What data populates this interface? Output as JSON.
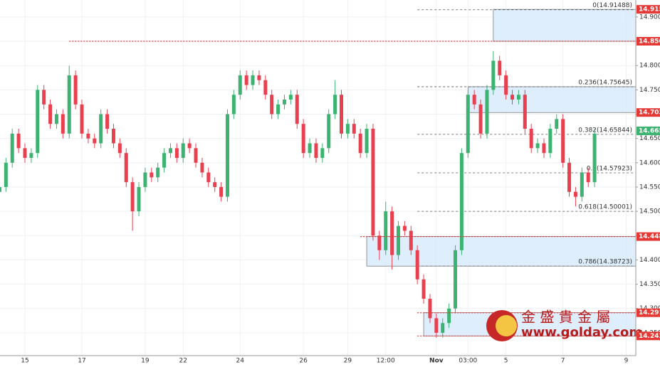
{
  "chart_data": {
    "type": "candlestick",
    "categories": [
      null,
      null,
      null,
      null,
      "15",
      null,
      null,
      null,
      null,
      null,
      null,
      null,
      null,
      "17",
      null,
      null,
      null,
      null,
      null,
      null,
      null,
      null,
      null,
      "19",
      null,
      null,
      null,
      null,
      null,
      "22",
      null,
      null,
      null,
      null,
      null,
      null,
      null,
      null,
      "24",
      null,
      null,
      null,
      null,
      null,
      null,
      null,
      null,
      null,
      "26",
      null,
      null,
      null,
      null,
      null,
      null,
      "29",
      null,
      null,
      null,
      null,
      null,
      "12:00",
      null,
      null,
      null,
      null,
      null,
      null,
      null,
      "Nov",
      null,
      null,
      null,
      null,
      "03:00",
      null,
      null,
      null,
      null,
      null,
      "5",
      null,
      null,
      null,
      null,
      null,
      null,
      null,
      null,
      "7",
      null,
      null,
      null,
      null,
      null,
      null,
      null,
      null,
      null,
      "9"
    ],
    "open": [
      14.54,
      14.55,
      14.6,
      14.66,
      14.63,
      14.61,
      14.62,
      14.75,
      14.72,
      14.68,
      14.7,
      14.66,
      14.78,
      14.72,
      14.66,
      14.65,
      14.64,
      14.7,
      14.67,
      14.64,
      14.62,
      14.56,
      14.5,
      14.55,
      14.58,
      14.57,
      14.59,
      14.62,
      14.63,
      14.61,
      14.64,
      14.63,
      14.6,
      14.58,
      14.56,
      14.55,
      14.53,
      14.7,
      14.74,
      14.78,
      14.76,
      14.78,
      14.77,
      14.74,
      14.7,
      14.72,
      14.73,
      14.74,
      14.68,
      14.62,
      14.64,
      14.61,
      14.63,
      14.7,
      14.74,
      14.66,
      14.68,
      14.66,
      14.62,
      14.67,
      14.45,
      14.42,
      14.5,
      14.41,
      14.47,
      14.46,
      14.42,
      14.36,
      14.32,
      14.28,
      14.25,
      14.27,
      14.3,
      14.42,
      14.62,
      14.74,
      14.72,
      14.66,
      14.75,
      14.81,
      14.78,
      14.74,
      14.73,
      14.74,
      14.67,
      14.63,
      14.64,
      14.62,
      14.67,
      14.69,
      14.6,
      14.54,
      14.53,
      14.58,
      14.56,
      null,
      null,
      null,
      null,
      null
    ],
    "high": [
      14.57,
      14.61,
      14.67,
      14.67,
      14.64,
      14.63,
      14.76,
      14.76,
      14.73,
      14.71,
      14.71,
      14.8,
      14.79,
      14.73,
      14.67,
      14.66,
      14.71,
      14.71,
      14.68,
      14.65,
      14.63,
      14.57,
      14.56,
      14.59,
      14.59,
      14.6,
      14.63,
      14.64,
      14.64,
      14.65,
      14.65,
      14.64,
      14.61,
      14.59,
      14.57,
      14.56,
      14.71,
      14.75,
      14.79,
      14.79,
      14.79,
      14.79,
      14.78,
      14.75,
      14.73,
      14.74,
      14.75,
      14.75,
      14.69,
      14.65,
      14.65,
      14.64,
      14.71,
      14.77,
      14.75,
      14.69,
      14.69,
      14.67,
      14.68,
      14.68,
      14.46,
      14.52,
      14.51,
      14.48,
      14.48,
      14.47,
      14.43,
      14.37,
      14.33,
      14.29,
      14.28,
      14.31,
      14.43,
      14.63,
      14.75,
      14.75,
      14.73,
      14.76,
      14.83,
      14.82,
      14.79,
      14.75,
      14.75,
      14.75,
      14.68,
      14.65,
      14.65,
      14.68,
      14.7,
      14.7,
      14.61,
      14.55,
      14.59,
      14.59,
      14.67,
      null,
      null,
      null,
      null,
      null
    ],
    "low": [
      14.53,
      14.54,
      14.59,
      14.62,
      14.6,
      14.6,
      14.61,
      14.71,
      14.67,
      14.67,
      14.65,
      14.65,
      14.71,
      14.65,
      14.64,
      14.63,
      14.63,
      14.66,
      14.63,
      14.61,
      14.55,
      14.46,
      14.49,
      14.54,
      14.56,
      14.56,
      14.58,
      14.61,
      14.6,
      14.6,
      14.62,
      14.59,
      14.57,
      14.55,
      14.54,
      14.52,
      14.52,
      14.69,
      14.73,
      14.75,
      14.75,
      14.76,
      14.73,
      14.69,
      14.69,
      14.71,
      14.72,
      14.67,
      14.61,
      14.61,
      14.6,
      14.6,
      14.62,
      14.69,
      14.65,
      14.65,
      14.65,
      14.61,
      14.61,
      14.44,
      14.4,
      14.41,
      14.38,
      14.4,
      14.45,
      14.41,
      14.35,
      14.31,
      14.27,
      14.24,
      14.24,
      14.26,
      14.29,
      14.41,
      14.61,
      14.71,
      14.65,
      14.65,
      14.74,
      14.77,
      14.73,
      14.72,
      14.72,
      14.66,
      14.62,
      14.62,
      14.61,
      14.61,
      14.66,
      14.59,
      14.53,
      14.51,
      14.52,
      14.55,
      14.55,
      null,
      null,
      null,
      null,
      null
    ],
    "close": [
      14.55,
      14.6,
      14.66,
      14.63,
      14.61,
      14.62,
      14.75,
      14.72,
      14.68,
      14.7,
      14.66,
      14.78,
      14.72,
      14.66,
      14.65,
      14.64,
      14.7,
      14.67,
      14.64,
      14.62,
      14.56,
      14.5,
      14.55,
      14.58,
      14.57,
      14.59,
      14.62,
      14.63,
      14.61,
      14.64,
      14.63,
      14.6,
      14.58,
      14.56,
      14.55,
      14.53,
      14.7,
      14.74,
      14.78,
      14.76,
      14.78,
      14.77,
      14.74,
      14.7,
      14.72,
      14.73,
      14.74,
      14.68,
      14.62,
      14.64,
      14.61,
      14.63,
      14.7,
      14.74,
      14.66,
      14.68,
      14.66,
      14.62,
      14.67,
      14.45,
      14.42,
      14.5,
      14.41,
      14.47,
      14.46,
      14.42,
      14.36,
      14.32,
      14.28,
      14.25,
      14.27,
      14.3,
      14.42,
      14.62,
      14.74,
      14.72,
      14.66,
      14.75,
      14.81,
      14.78,
      14.74,
      14.73,
      14.74,
      14.67,
      14.63,
      14.64,
      14.62,
      14.67,
      14.69,
      14.6,
      14.54,
      14.53,
      14.58,
      14.56,
      14.66,
      null,
      null,
      null,
      null,
      null
    ],
    "up_color": "#3cb371",
    "down_color": "#e8404f",
    "ylim": [
      14.203,
      14.935
    ],
    "yticks": [
      {
        "value": 14.25,
        "label": "14.25000"
      },
      {
        "value": 14.3,
        "label": "14.30000"
      },
      {
        "value": 14.35,
        "label": "14.35000"
      },
      {
        "value": 14.4,
        "label": "14.40000"
      },
      {
        "value": 14.45,
        "label": "14.45000"
      },
      {
        "value": 14.5,
        "label": "14.50000"
      },
      {
        "value": 14.55,
        "label": "14.55000"
      },
      {
        "value": 14.6,
        "label": "14.60000"
      },
      {
        "value": 14.65,
        "label": "14.65000"
      },
      {
        "value": 14.7,
        "label": "14.70000"
      },
      {
        "value": 14.75,
        "label": "14.75000"
      },
      {
        "value": 14.8,
        "label": "14.80000"
      },
      {
        "value": 14.85,
        "label": "14.85000"
      },
      {
        "value": 14.9,
        "label": "14.90000"
      }
    ],
    "grid": true,
    "zones": [
      {
        "low": 14.85009,
        "high": 14.91578,
        "start": 78
      },
      {
        "low": 14.70341,
        "high": 14.75645,
        "start": 74
      },
      {
        "low": 14.38723,
        "high": 14.44804,
        "start": 58
      },
      {
        "low": 14.24357,
        "high": 14.29126,
        "start": 67
      }
    ],
    "levels": [
      {
        "value": 14.85009,
        "start": 11
      },
      {
        "value": 14.44804,
        "start": 57
      },
      {
        "value": 14.29126,
        "start": 66
      },
      {
        "value": 14.24357,
        "start": 66
      }
    ],
    "fib": {
      "start": 66,
      "levels": [
        {
          "value": 14.91488,
          "label": "0(14.91488)"
        },
        {
          "value": 14.75645,
          "label": "0.236(14.75645)"
        },
        {
          "value": 14.65844,
          "label": "0.382(14.65844)"
        },
        {
          "value": 14.57923,
          "label": "0.5(14.57923)"
        },
        {
          "value": 14.50001,
          "label": "0.618(14.50001)"
        },
        {
          "value": 14.38723,
          "label": "0.786(14.38723)"
        }
      ]
    },
    "price_tags": [
      {
        "value": 14.91578,
        "color": "#e53935"
      },
      {
        "value": 14.85009,
        "color": "#e53935"
      },
      {
        "value": 14.70341,
        "color": "#e53935"
      },
      {
        "value": 14.66566,
        "color": "#3cb371"
      },
      {
        "value": 14.44804,
        "color": "#e53935"
      },
      {
        "value": 14.29126,
        "color": "#e53935"
      },
      {
        "value": 14.24357,
        "color": "#e53935"
      }
    ],
    "watermark": {
      "title": "金 盛 貴 金 屬",
      "url": "www.golday.com"
    }
  }
}
